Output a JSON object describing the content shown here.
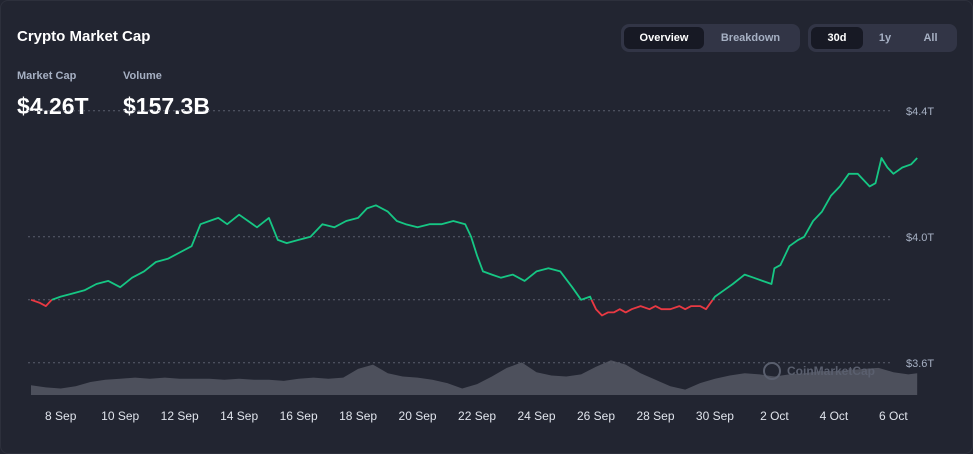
{
  "header": {
    "title": "Crypto Market Cap"
  },
  "stats": {
    "market_cap_label": "Market Cap",
    "market_cap_value": "$4.26T",
    "volume_label": "Volume",
    "volume_value": "$157.3B"
  },
  "view_tabs": {
    "overview": "Overview",
    "breakdown": "Breakdown",
    "active": "Overview"
  },
  "range_tabs": {
    "d30": "30d",
    "y1": "1y",
    "all": "All",
    "active": "30d"
  },
  "watermark": "CoinMarketCap",
  "colors": {
    "up": "#16c784",
    "down": "#ea3943",
    "volume": "#5c5f6b",
    "background": "#222531"
  },
  "chart_data": {
    "type": "line",
    "title": "",
    "xlabel": "",
    "ylabel": "",
    "baseline": 3.8,
    "ylim": [
      3.45,
      4.45
    ],
    "y_ticks": [
      "$4.4T",
      "$4.0T",
      "$3.6T"
    ],
    "y_tick_values": [
      4.4,
      4.0,
      3.6
    ],
    "grid": "horizontal dotted",
    "x_ticks": [
      "8 Sep",
      "10 Sep",
      "12 Sep",
      "14 Sep",
      "16 Sep",
      "18 Sep",
      "20 Sep",
      "22 Sep",
      "24 Sep",
      "26 Sep",
      "28 Sep",
      "30 Sep",
      "2 Oct",
      "4 Oct",
      "6 Oct"
    ],
    "x_tick_values": [
      8,
      10,
      12,
      14,
      16,
      18,
      20,
      22,
      24,
      26,
      28,
      30,
      32,
      34,
      36
    ],
    "xlim": [
      6.9,
      37.5
    ],
    "series": [
      {
        "x": [
          7.0,
          7.3,
          7.5,
          7.7,
          8.0,
          8.4,
          8.8,
          9.2,
          9.6,
          10.0,
          10.4,
          10.8,
          11.2,
          11.6,
          12.0,
          12.4,
          12.7,
          13.0,
          13.3,
          13.6,
          14.0,
          14.3,
          14.6,
          15.0,
          15.3,
          15.6,
          16.0,
          16.4,
          16.8,
          17.2,
          17.6,
          18.0,
          18.3,
          18.6,
          19.0,
          19.3,
          19.6,
          20.0,
          20.4,
          20.8,
          21.2,
          21.6,
          21.8,
          22.0,
          22.2,
          22.5,
          22.8,
          23.2,
          23.6,
          24.0,
          24.4,
          24.8,
          25.2,
          25.5,
          25.8,
          26.0,
          26.2,
          26.4,
          26.6,
          26.8,
          27.0,
          27.2,
          27.5,
          27.8,
          28.0,
          28.2,
          28.5,
          28.8,
          29.0,
          29.2,
          29.5,
          29.7,
          30.0,
          30.3,
          30.6,
          31.0,
          31.3,
          31.6,
          31.9,
          32.0,
          32.2,
          32.5,
          32.8,
          33.0,
          33.3,
          33.6,
          33.9,
          34.2,
          34.5,
          34.8,
          35.0,
          35.2,
          35.4,
          35.6,
          35.8,
          36.0,
          36.3,
          36.6,
          36.8
        ],
        "y": [
          3.8,
          3.79,
          3.78,
          3.8,
          3.81,
          3.82,
          3.83,
          3.85,
          3.86,
          3.84,
          3.87,
          3.89,
          3.92,
          3.93,
          3.95,
          3.97,
          4.04,
          4.05,
          4.06,
          4.04,
          4.07,
          4.05,
          4.03,
          4.06,
          3.99,
          3.98,
          3.99,
          4.0,
          4.04,
          4.03,
          4.05,
          4.06,
          4.09,
          4.1,
          4.08,
          4.05,
          4.04,
          4.03,
          4.04,
          4.04,
          4.05,
          4.04,
          4.0,
          3.94,
          3.89,
          3.88,
          3.87,
          3.88,
          3.86,
          3.89,
          3.9,
          3.89,
          3.84,
          3.8,
          3.81,
          3.77,
          3.75,
          3.76,
          3.76,
          3.77,
          3.76,
          3.77,
          3.78,
          3.77,
          3.78,
          3.77,
          3.77,
          3.78,
          3.77,
          3.78,
          3.78,
          3.77,
          3.81,
          3.83,
          3.85,
          3.88,
          3.87,
          3.86,
          3.85,
          3.9,
          3.91,
          3.97,
          3.99,
          4.0,
          4.05,
          4.08,
          4.13,
          4.16,
          4.2,
          4.2,
          4.18,
          4.16,
          4.17,
          4.25,
          4.22,
          4.2,
          4.22,
          4.23,
          4.25
        ]
      }
    ],
    "volume": {
      "x": [
        7.0,
        7.5,
        8.0,
        8.5,
        9.0,
        9.5,
        10.0,
        10.5,
        11.0,
        11.5,
        12.0,
        12.5,
        13.0,
        13.5,
        14.0,
        14.5,
        15.0,
        15.5,
        16.0,
        16.5,
        17.0,
        17.5,
        18.0,
        18.5,
        19.0,
        19.5,
        20.0,
        20.5,
        21.0,
        21.5,
        22.0,
        22.5,
        23.0,
        23.5,
        24.0,
        24.5,
        25.0,
        25.5,
        26.0,
        26.5,
        27.0,
        27.5,
        28.0,
        28.5,
        29.0,
        29.5,
        30.0,
        30.5,
        31.0,
        31.5,
        32.0,
        32.5,
        33.0,
        33.5,
        34.0,
        34.5,
        35.0,
        35.5,
        36.0,
        36.5,
        36.8
      ],
      "values": [
        9,
        7,
        6,
        8,
        12,
        14,
        15,
        16,
        15,
        16,
        15,
        15,
        15,
        14,
        15,
        14,
        14,
        13,
        15,
        16,
        15,
        16,
        24,
        28,
        20,
        17,
        16,
        14,
        11,
        6,
        10,
        17,
        25,
        30,
        21,
        18,
        17,
        19,
        26,
        32,
        28,
        20,
        14,
        8,
        5,
        11,
        15,
        18,
        20,
        19,
        17,
        19,
        20,
        22,
        22,
        23,
        24,
        25,
        21,
        19,
        20
      ],
      "max": 35
    }
  }
}
